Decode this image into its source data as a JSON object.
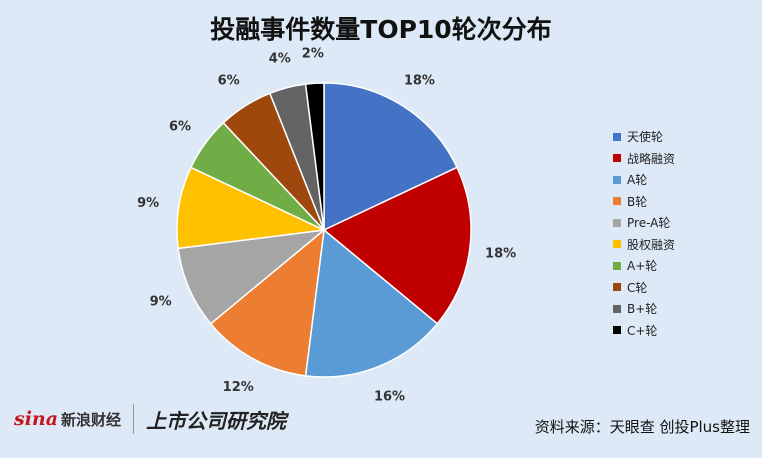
{
  "footer": {
    "sina_logo": "sina",
    "sina_cn": "新浪财经",
    "institute": "上市公司研究院",
    "source": "资料来源：天眼查 创投Plus整理"
  },
  "chart_data": {
    "type": "pie",
    "title": "投融事件数量TOP10轮次分布",
    "categories": [
      "天使轮",
      "战略融资",
      "A轮",
      "B轮",
      "Pre-A轮",
      "股权融资",
      "A+轮",
      "C轮",
      "B+轮",
      "C+轮"
    ],
    "values": [
      18,
      18,
      16,
      12,
      9,
      9,
      6,
      6,
      4,
      2
    ],
    "data_labels": [
      "18%",
      "18%",
      "16%",
      "12%",
      "9%",
      "9%",
      "6%",
      "6%",
      "4%",
      "2%"
    ],
    "colors": [
      "#4472c4",
      "#c00000",
      "#5b9bd5",
      "#ed7d31",
      "#a5a5a5",
      "#ffc000",
      "#70ad47",
      "#9e480e",
      "#636363",
      "#000000"
    ],
    "legend_position": "right"
  }
}
